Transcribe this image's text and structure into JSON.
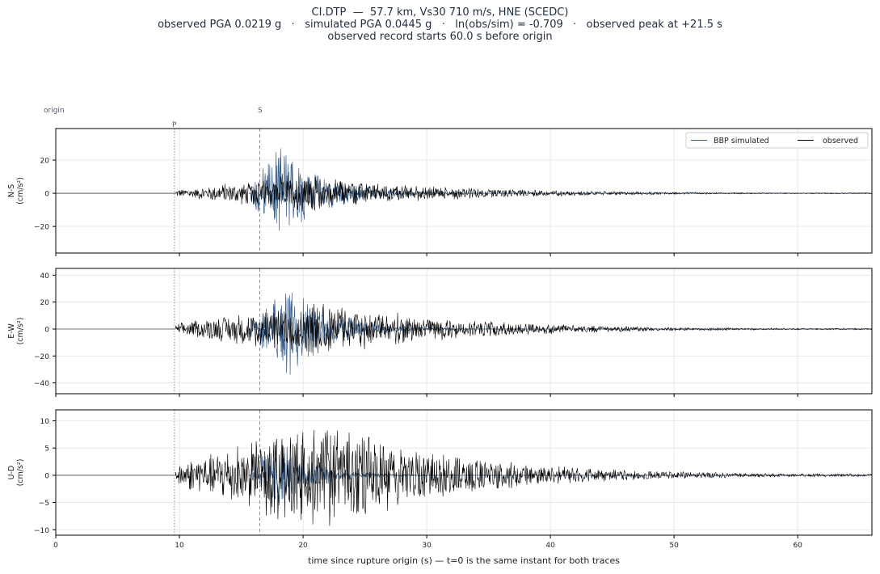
{
  "title": {
    "line1": "CI.DTP  —  57.7 km, Vs30 710 m/s, HNE (SCEDC)",
    "line2": "observed PGA 0.0219 g   ·   simulated PGA 0.0445 g   ·   ln(obs/sim) = -0.709   ·   observed peak at +21.5 s",
    "line3": "observed record starts 60.0 s before origin"
  },
  "markers": {
    "origin": "origin",
    "p": "P",
    "s": "S",
    "p_time": 9.6,
    "s_time": 16.5
  },
  "colors": {
    "simulated": "#3a5f8a",
    "observed": "#000000",
    "p_line": "#8a8a8a",
    "s_line": "#7f93c0",
    "grid": "#e3e3e3"
  },
  "chart_data": [
    {
      "type": "line",
      "ylabel": "N-S\n(cm/s²)",
      "xlim": [
        0,
        66
      ],
      "ylim": [
        -36,
        39
      ],
      "yticks": [
        -20,
        0,
        20
      ],
      "envelope": {
        "simulated": {
          "amplitude": 34,
          "start": 15.8,
          "peak": 18.0,
          "end": 33
        },
        "observed": {
          "amplitude": 11,
          "start": 9.7,
          "peak": 20.0,
          "end": 66
        }
      },
      "series": [
        {
          "name": "BBP simulated",
          "color": "#3a5f8a"
        },
        {
          "name": "observed",
          "color": "#000000"
        }
      ],
      "legend": "top-right"
    },
    {
      "type": "line",
      "ylabel": "E-W\n(cm/s²)",
      "xlim": [
        0,
        66
      ],
      "ylim": [
        -48,
        45
      ],
      "yticks": [
        -40,
        -20,
        0,
        20,
        40
      ],
      "envelope": {
        "simulated": {
          "amplitude": 42,
          "start": 15.8,
          "peak": 19.0,
          "end": 33
        },
        "observed": {
          "amplitude": 20,
          "start": 9.7,
          "peak": 21.5,
          "end": 66
        }
      },
      "series": [
        {
          "name": "BBP simulated",
          "color": "#3a5f8a"
        },
        {
          "name": "observed",
          "color": "#000000"
        }
      ]
    },
    {
      "type": "line",
      "ylabel": "U-D\n(cm/s²)",
      "xlim": [
        0,
        66
      ],
      "ylim": [
        -11,
        12
      ],
      "yticks": [
        -10,
        -5,
        0,
        5,
        10
      ],
      "xticks": [
        0,
        10,
        20,
        30,
        40,
        50,
        60
      ],
      "xlabel": "time since rupture origin (s)   —   t=0 is the same instant for both traces",
      "envelope": {
        "simulated": {
          "amplitude": 7,
          "start": 15.8,
          "peak": 18.0,
          "end": 30
        },
        "observed": {
          "amplitude": 10,
          "start": 9.7,
          "peak": 21.5,
          "end": 66
        }
      },
      "series": [
        {
          "name": "BBP simulated",
          "color": "#3a5f8a"
        },
        {
          "name": "observed",
          "color": "#000000"
        }
      ]
    }
  ]
}
